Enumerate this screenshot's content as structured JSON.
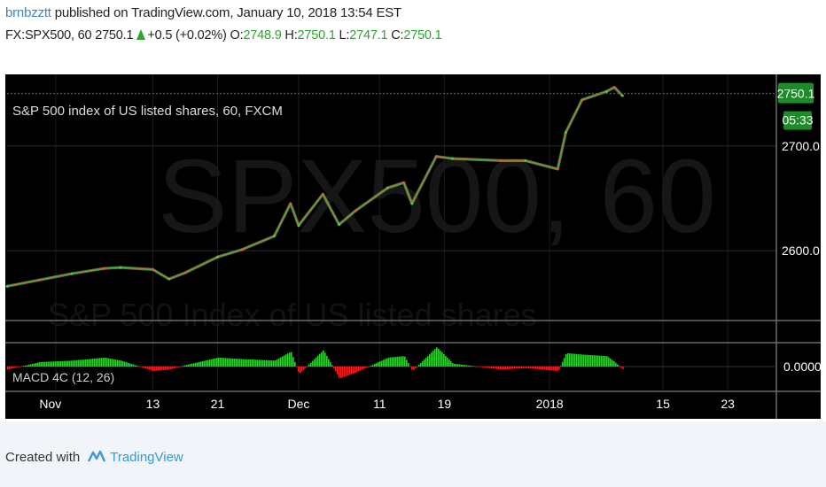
{
  "header": {
    "author": "brnbzztt",
    "published_text": "published on TradingView.com, January 10, 2018 13:54 EST",
    "symbol": "FX:SPX500, 60",
    "last": "2750.1",
    "change": "+0.5 (+0.02%)",
    "o_label": "O:",
    "o_value": "2748.9",
    "h_label": "H:",
    "h_value": "2750.1",
    "l_label": "L:",
    "l_value": "2747.1",
    "c_label": "C:",
    "c_value": "2750.1"
  },
  "watermark": {
    "main": "SPX500, 60",
    "sub": "S&P 500 Index of US listed shares"
  },
  "footer": {
    "created_with": "Created with",
    "brand": "TradingView"
  },
  "colors": {
    "background": "#000000",
    "axis_text": "#ffffff",
    "price_line": "#2a8a2a",
    "price_badge": "#1f8a2a",
    "macd_positive": "#33cc33",
    "macd_negative": "#ee2222",
    "author": "#3a86c8",
    "positive_text": "#2ea52e"
  },
  "chart_data": [
    {
      "type": "line",
      "legend": "S&P 500 index of US listed shares, 60, FXCM",
      "last_price_label": "2750.1",
      "countdown_label": "05:33",
      "y_ticks": [
        2600.0,
        2700.0
      ],
      "y_tick_labels": [
        "2600.0",
        "2700.0"
      ],
      "ylim": [
        2535,
        2765
      ],
      "x_tick_labels": [
        "Nov",
        "13",
        "21",
        "Dec",
        "11",
        "19",
        "2018",
        "15",
        "23"
      ],
      "x": [
        "2017-10-26",
        "2017-10-30",
        "2017-11-03",
        "2017-11-07",
        "2017-11-09",
        "2017-11-13",
        "2017-11-15",
        "2017-11-17",
        "2017-11-21",
        "2017-11-24",
        "2017-11-28",
        "2017-11-30",
        "2017-12-01",
        "2017-12-04",
        "2017-12-06",
        "2017-12-08",
        "2017-12-12",
        "2017-12-14",
        "2017-12-15",
        "2017-12-18",
        "2017-12-20",
        "2017-12-26",
        "2017-12-29",
        "2018-01-02",
        "2018-01-03",
        "2018-01-05",
        "2018-01-08",
        "2018-01-09",
        "2018-01-10"
      ],
      "values": [
        2566,
        2572,
        2578,
        2583,
        2584,
        2582,
        2573,
        2579,
        2594,
        2601,
        2614,
        2645,
        2624,
        2654,
        2625,
        2638,
        2660,
        2665,
        2645,
        2690,
        2688,
        2686,
        2686,
        2678,
        2713,
        2744,
        2752,
        2756,
        2748
      ]
    },
    {
      "type": "area",
      "legend": "MACD 4C (12, 26)",
      "y_tick_labels": [
        "0.0000"
      ],
      "x": [
        "2017-10-26",
        "2017-10-30",
        "2017-11-03",
        "2017-11-07",
        "2017-11-09",
        "2017-11-13",
        "2017-11-15",
        "2017-11-17",
        "2017-11-21",
        "2017-11-24",
        "2017-11-28",
        "2017-11-30",
        "2017-12-01",
        "2017-12-04",
        "2017-12-06",
        "2017-12-08",
        "2017-12-12",
        "2017-12-14",
        "2017-12-15",
        "2017-12-18",
        "2017-12-20",
        "2017-12-26",
        "2017-12-29",
        "2018-01-02",
        "2018-01-03",
        "2018-01-05",
        "2018-01-08",
        "2018-01-09",
        "2018-01-10"
      ],
      "values": [
        -2,
        3,
        4,
        6,
        4,
        -3,
        -2,
        1,
        6,
        5,
        4,
        10,
        -5,
        11,
        -8,
        -4,
        6,
        7,
        -3,
        13,
        2,
        -2,
        -1,
        -3,
        9,
        8,
        7,
        3,
        -2
      ]
    }
  ]
}
